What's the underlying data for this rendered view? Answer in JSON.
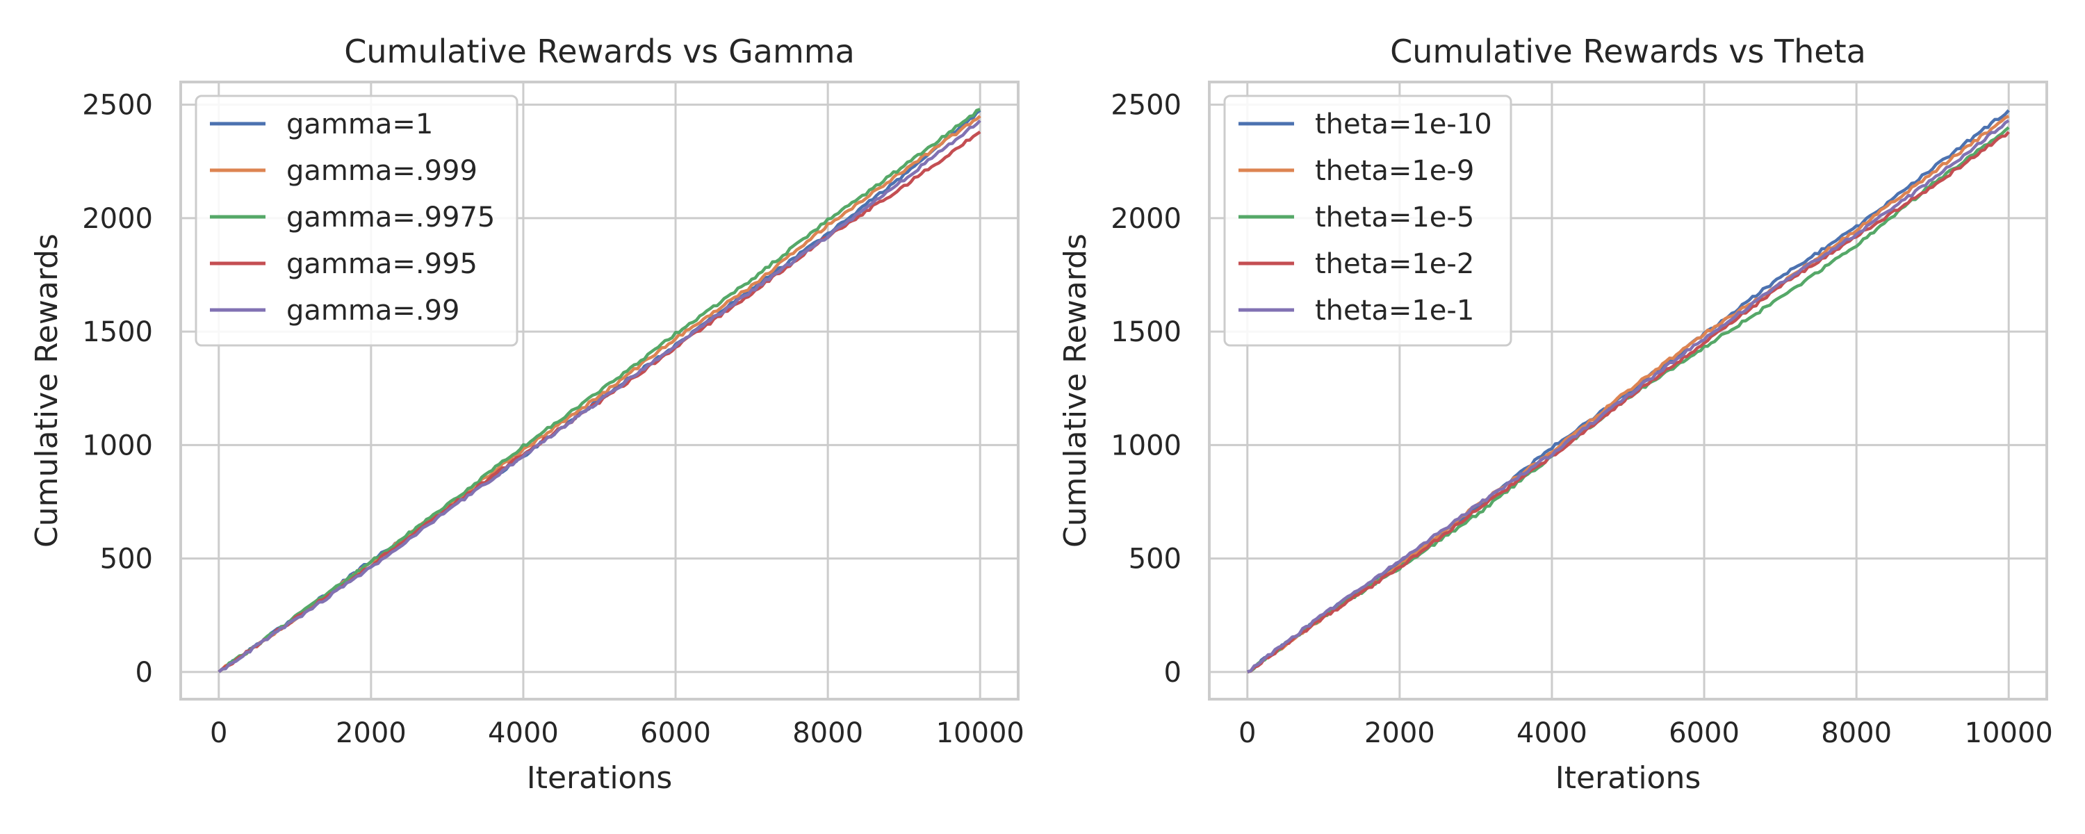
{
  "chart_data": [
    {
      "type": "line",
      "title": "Cumulative Rewards vs Gamma",
      "xlabel": "Iterations",
      "ylabel": "Cumulative Rewards",
      "xlim": [
        -500,
        10500
      ],
      "ylim": [
        -120,
        2600
      ],
      "xticks": [
        0,
        2000,
        4000,
        6000,
        8000,
        10000
      ],
      "yticks": [
        0,
        500,
        1000,
        1500,
        2000,
        2500
      ],
      "grid": true,
      "legend_position": "top-left",
      "x": [
        0,
        1000,
        2000,
        3000,
        4000,
        5000,
        6000,
        7000,
        8000,
        9000,
        10000
      ],
      "series": [
        {
          "name": "gamma=1",
          "color": "#4c72b0",
          "values": [
            0,
            240,
            490,
            720,
            950,
            1200,
            1440,
            1690,
            1930,
            2190,
            2475
          ]
        },
        {
          "name": "gamma=.999",
          "color": "#dd8452",
          "values": [
            0,
            235,
            480,
            730,
            980,
            1215,
            1470,
            1700,
            1970,
            2210,
            2450
          ]
        },
        {
          "name": "gamma=.9975",
          "color": "#55a868",
          "values": [
            0,
            240,
            485,
            735,
            995,
            1235,
            1490,
            1730,
            1990,
            2230,
            2480
          ]
        },
        {
          "name": "gamma=.995",
          "color": "#c44e52",
          "values": [
            0,
            235,
            470,
            720,
            960,
            1190,
            1430,
            1670,
            1920,
            2140,
            2380
          ]
        },
        {
          "name": "gamma=.99",
          "color": "#8172b3",
          "values": [
            0,
            230,
            460,
            710,
            950,
            1195,
            1440,
            1680,
            1920,
            2170,
            2430
          ]
        }
      ]
    },
    {
      "type": "line",
      "title": "Cumulative Rewards vs Theta",
      "xlabel": "Iterations",
      "ylabel": "Cumulative Rewards",
      "xlim": [
        -500,
        10500
      ],
      "ylim": [
        -120,
        2600
      ],
      "xticks": [
        0,
        2000,
        4000,
        6000,
        8000,
        10000
      ],
      "yticks": [
        0,
        500,
        1000,
        1500,
        2000,
        2500
      ],
      "grid": true,
      "legend_position": "top-left",
      "x": [
        0,
        1000,
        2000,
        3000,
        4000,
        5000,
        6000,
        7000,
        8000,
        9000,
        10000
      ],
      "series": [
        {
          "name": "theta=1e-10",
          "color": "#4c72b0",
          "values": [
            0,
            250,
            480,
            720,
            990,
            1230,
            1490,
            1740,
            1960,
            2220,
            2475
          ]
        },
        {
          "name": "theta=1e-9",
          "color": "#dd8452",
          "values": [
            0,
            240,
            470,
            730,
            970,
            1240,
            1490,
            1710,
            1950,
            2200,
            2450
          ]
        },
        {
          "name": "theta=1e-5",
          "color": "#55a868",
          "values": [
            0,
            245,
            460,
            690,
            950,
            1210,
            1430,
            1650,
            1880,
            2150,
            2400
          ]
        },
        {
          "name": "theta=1e-2",
          "color": "#c44e52",
          "values": [
            0,
            240,
            460,
            710,
            950,
            1210,
            1450,
            1700,
            1920,
            2140,
            2380
          ]
        },
        {
          "name": "theta=1e-1",
          "color": "#8172b3",
          "values": [
            0,
            255,
            490,
            730,
            960,
            1220,
            1470,
            1710,
            1930,
            2170,
            2430
          ]
        }
      ]
    }
  ]
}
